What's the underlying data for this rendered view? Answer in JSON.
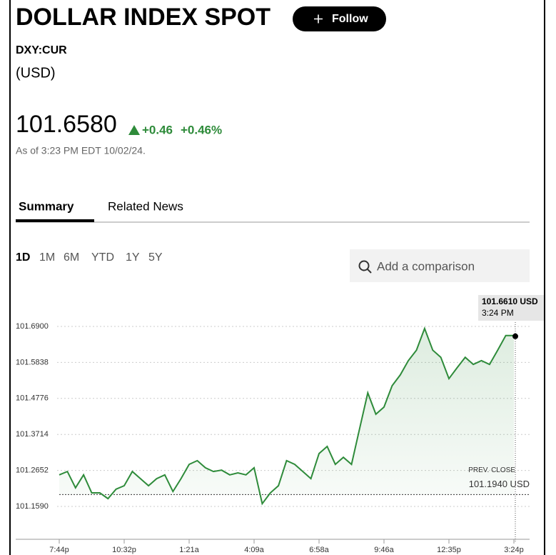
{
  "header": {
    "title": "DOLLAR INDEX SPOT",
    "follow": "Follow",
    "ticker": "DXY:CUR",
    "currency": "(USD)",
    "price": "101.6580",
    "change": "+0.46",
    "change_pct": "+0.46%",
    "as_of": "As of 3:23 PM EDT 10/02/24."
  },
  "tabs": [
    "Summary",
    "Related News"
  ],
  "ranges": [
    "1D",
    "1M",
    "6M",
    "YTD",
    "1Y",
    "5Y"
  ],
  "search_placeholder": "Add a comparison",
  "chart_data": {
    "type": "line",
    "color": "#2e8b3a",
    "categories": [
      "7:44p",
      null,
      null,
      null,
      null,
      null,
      null,
      null,
      "10:32p",
      null,
      null,
      null,
      null,
      null,
      null,
      null,
      "1:21a",
      null,
      null,
      null,
      null,
      null,
      null,
      null,
      "4:09a",
      null,
      null,
      null,
      null,
      null,
      null,
      null,
      "6:58a",
      null,
      null,
      null,
      null,
      null,
      null,
      null,
      "9:46a",
      null,
      null,
      null,
      null,
      null,
      null,
      null,
      "12:35p",
      null,
      null,
      null,
      null,
      null,
      null,
      null,
      "3:24p"
    ],
    "values": [
      101.252,
      101.262,
      101.214,
      101.252,
      101.199,
      101.199,
      101.182,
      101.21,
      101.22,
      101.262,
      101.241,
      101.22,
      101.241,
      101.252,
      101.203,
      101.241,
      101.283,
      101.294,
      101.273,
      101.262,
      101.266,
      101.252,
      101.258,
      101.252,
      101.273,
      101.167,
      101.199,
      101.22,
      101.294,
      101.283,
      101.262,
      101.241,
      101.315,
      101.336,
      101.283,
      101.304,
      101.283,
      101.389,
      101.494,
      101.431,
      101.452,
      101.515,
      101.547,
      101.589,
      101.62,
      101.684,
      101.62,
      101.599,
      101.536,
      101.568,
      101.599,
      101.578,
      101.589,
      101.578,
      101.62,
      101.663,
      101.663
    ],
    "ylim": [
      101.062,
      101.768
    ],
    "yticks": [
      {
        "value": 101.69,
        "label": "101.6900"
      },
      101.5838,
      101.4776,
      101.3714,
      101.2652,
      {
        "value": 101.159,
        "label": "101.1590"
      }
    ],
    "grid": true,
    "prev_close": {
      "label": "PREV. CLOSE",
      "value": 101.194,
      "value_label": "101.1940 USD"
    },
    "hover": {
      "value": 101.661,
      "value_label": "101.6610 USD",
      "time": "3:24 PM"
    }
  }
}
